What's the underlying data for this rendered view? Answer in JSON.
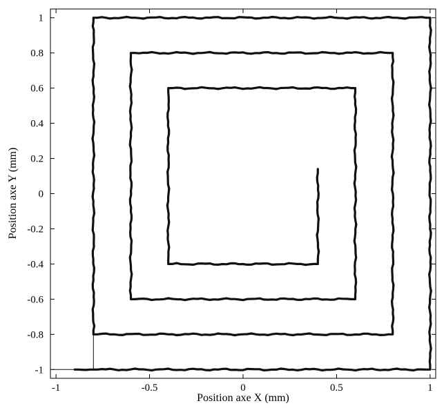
{
  "chart_data": {
    "type": "line",
    "title": "",
    "xlabel": "Position axe X (mm)",
    "ylabel": "Position axe Y (mm)",
    "xlim": [
      -1.03,
      1.03
    ],
    "ylim": [
      -1.05,
      1.05
    ],
    "x_ticks": [
      -1,
      -0.5,
      0,
      0.5,
      1
    ],
    "x_tick_labels": [
      "-1",
      "-0.5",
      "0",
      "0.5",
      "1"
    ],
    "y_ticks": [
      -1,
      -0.8,
      -0.6,
      -0.4,
      -0.2,
      0,
      0.2,
      0.4,
      0.6,
      0.8,
      1
    ],
    "y_tick_labels": [
      "-1",
      "-0.8",
      "-0.6",
      "-0.4",
      "-0.2",
      "0",
      "0.2",
      "0.4",
      "0.6",
      "0.8",
      "1"
    ],
    "grid": false,
    "legend": null,
    "line_color": "#111111",
    "series": [
      {
        "style": "reference",
        "x": [
          -1.02,
          -0.8,
          -0.8,
          1.0,
          1.0,
          -0.8,
          -0.8,
          0.8,
          0.8,
          -0.6,
          -0.6,
          0.6,
          0.6,
          -0.4,
          -0.4,
          0.4,
          0.4
        ],
        "y": [
          -1.0,
          -1.0,
          1.0,
          1.0,
          -1.0,
          -1.0,
          -0.8,
          -0.8,
          0.8,
          0.8,
          -0.6,
          -0.6,
          0.6,
          0.6,
          -0.4,
          -0.4,
          0.14
        ]
      },
      {
        "style": "measured",
        "x": [
          -0.9,
          -0.8,
          1.0,
          1.0,
          -0.8,
          -0.8,
          0.8,
          0.8,
          -0.6,
          -0.6,
          0.6,
          0.6,
          -0.4,
          -0.4,
          0.4,
          0.4
        ],
        "y": [
          -1.0,
          -1.0,
          -1.0,
          1.0,
          1.0,
          -0.8,
          -0.8,
          0.8,
          0.8,
          -0.6,
          -0.6,
          0.6,
          0.6,
          -0.4,
          -0.4,
          0.14
        ]
      }
    ]
  }
}
